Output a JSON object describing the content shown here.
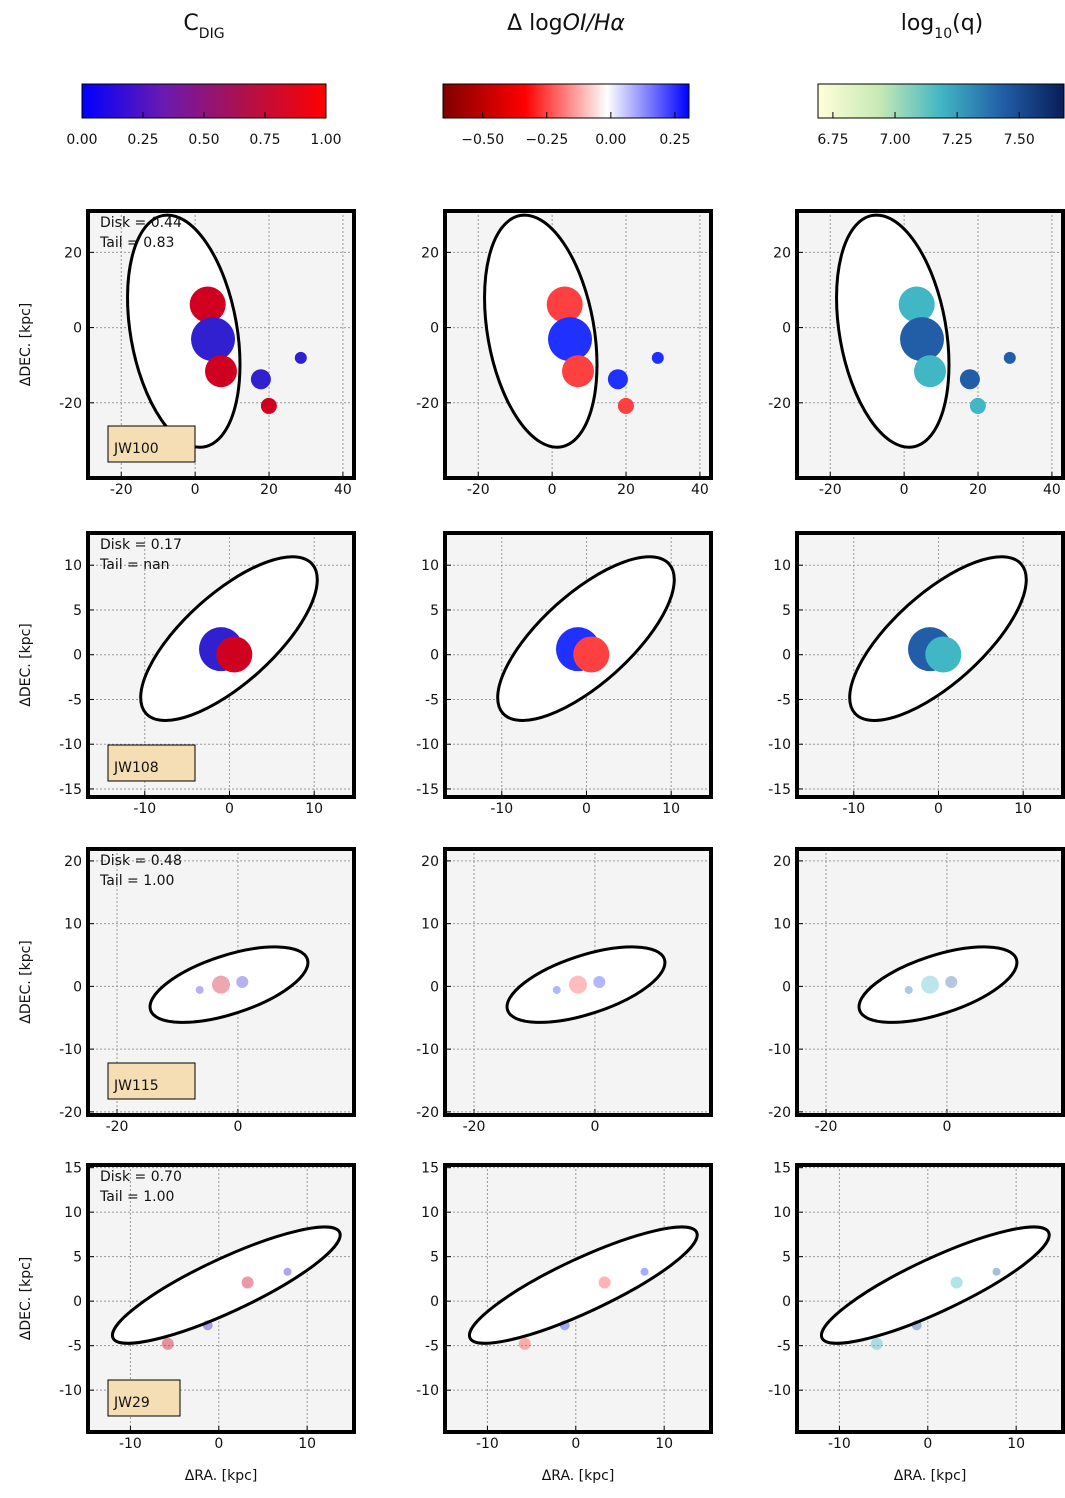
{
  "colorbars": [
    {
      "title": [
        {
          "text": "C"
        },
        {
          "text": "DIG",
          "sub": true
        }
      ],
      "vlim": [
        0,
        1
      ],
      "ticks": [
        {
          "value": 0,
          "label": "0.00"
        },
        {
          "value": 0.25,
          "label": "0.25"
        },
        {
          "value": 0.5,
          "label": "0.50"
        },
        {
          "value": 0.75,
          "label": "0.75"
        },
        {
          "value": 1,
          "label": "1.00"
        }
      ],
      "colors": [
        "#0000ff",
        "#6a1ab0",
        "#b0104a",
        "#ff0000"
      ]
    },
    {
      "title": [
        {
          "text": "Δ log"
        },
        {
          "text": "OI/Hα",
          "italic": true
        }
      ],
      "vlim": [
        -0.655,
        0.305
      ],
      "ticks": [
        {
          "value": -0.5,
          "label": "−0.50"
        },
        {
          "value": -0.25,
          "label": "−0.25"
        },
        {
          "value": 0,
          "label": "0.00"
        },
        {
          "value": 0.25,
          "label": "0.25"
        }
      ],
      "colors": [
        "#800000",
        "#ff0000",
        "#ffffff",
        "#0000ff"
      ]
    },
    {
      "title": [
        {
          "text": "log"
        },
        {
          "text": "10",
          "sub": true
        },
        {
          "text": "(q)"
        }
      ],
      "vlim": [
        6.69,
        7.68
      ],
      "ticks": [
        6.75,
        {
          "value": 7,
          "label": "7.00"
        },
        7.25,
        {
          "value": 7.5,
          "label": "7.50"
        }
      ],
      "colors": [
        "#ffffd9",
        "#c7e9b4",
        "#41b6c4",
        "#225ea8",
        "#081d58"
      ]
    }
  ],
  "y_label": "ΔDEC. [kpc]",
  "x_label": "ΔRA. [kpc]",
  "rows": [
    {
      "galaxy": "JW100",
      "disk": "Disk = 0.44",
      "tail": "Tail = 0.83",
      "xlim": [
        -29,
        43
      ],
      "xticks": [
        -20,
        0,
        20,
        40
      ],
      "ylim": [
        -40,
        31
      ],
      "yticks": [
        -20,
        0,
        20
      ]
    },
    {
      "galaxy": "JW108",
      "disk": "Disk = 0.17",
      "tail": "Tail = nan",
      "xlim": [
        -16.7,
        14.7
      ],
      "xticks": [
        -10,
        0,
        10
      ],
      "ylim": [
        -15.9,
        13.6
      ],
      "yticks": [
        -15,
        -10,
        -5,
        0,
        5,
        10
      ]
    },
    {
      "galaxy": "JW115",
      "disk": "Disk = 0.48",
      "tail": "Tail = 1.00",
      "xlim": [
        -24.8,
        19.2
      ],
      "xticks": [
        -20,
        0
      ],
      "ylim": [
        -20.5,
        21.9
      ],
      "yticks": [
        -20,
        -10,
        0,
        10,
        20
      ]
    },
    {
      "galaxy": "JW29",
      "disk": "Disk = 0.70",
      "tail": "Tail = 1.00",
      "xlim": [
        -14.8,
        15.3
      ],
      "xticks": [
        -10,
        0,
        10
      ],
      "ylim": [
        -14.7,
        15.3
      ],
      "yticks": [
        -10,
        -5,
        0,
        5,
        10,
        15
      ]
    }
  ]
}
